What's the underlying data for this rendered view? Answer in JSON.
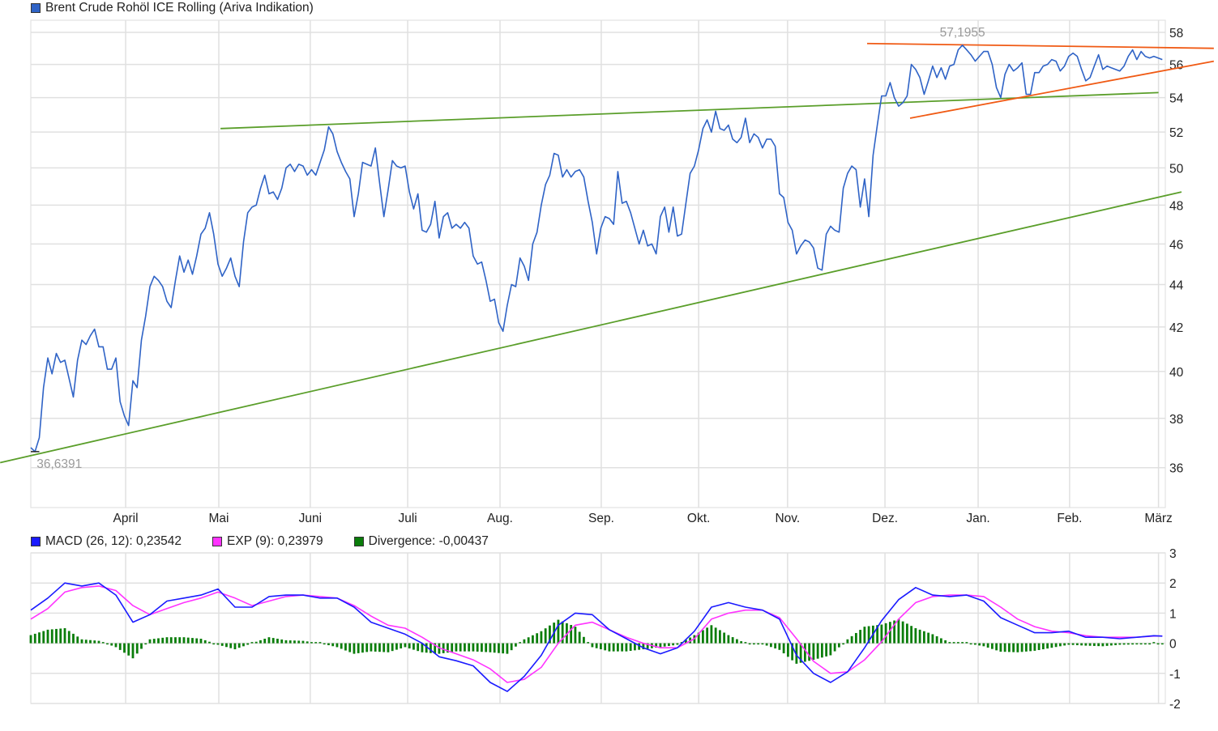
{
  "chart_data": [
    {
      "type": "line",
      "title": "Brent Crude Rohöl ICE Rolling (Ariva Indikation)",
      "y_scale": "log",
      "ylim": [
        34.46,
        58.78
      ],
      "y_ticks": [
        36,
        38,
        40,
        42,
        44,
        46,
        48,
        50,
        52,
        54,
        56,
        58
      ],
      "x_unit": "trading day index",
      "xlim": [
        0,
        266.7
      ],
      "x_ticks": [
        {
          "label": "April",
          "x": 22.3
        },
        {
          "label": "Mai",
          "x": 44.2
        },
        {
          "label": "Juni",
          "x": 65.7
        },
        {
          "label": "Juli",
          "x": 88.6
        },
        {
          "label": "Aug.",
          "x": 110.3
        },
        {
          "label": "Sep.",
          "x": 134.1
        },
        {
          "label": "Okt.",
          "x": 157
        },
        {
          "label": "Nov.",
          "x": 177.9
        },
        {
          "label": "Dez.",
          "x": 200.8
        },
        {
          "label": "Jan.",
          "x": 222.7
        },
        {
          "label": "Feb.",
          "x": 244.2
        },
        {
          "label": "März",
          "x": 265.1
        }
      ],
      "grid": true,
      "series": [
        {
          "name": "Brent Crude Rohöl ICE Rolling (Ariva Indikation)",
          "color": "#2f63c6",
          "values": [
            36.8,
            36.6391,
            37.2,
            39.3,
            40.6,
            39.9,
            40.8,
            40.4,
            40.5,
            39.7,
            38.9,
            40.5,
            41.4,
            41.2,
            41.6,
            41.9,
            41.1,
            41.1,
            40.1,
            40.1,
            40.6,
            38.7,
            38.1,
            37.7,
            39.6,
            39.3,
            41.4,
            42.5,
            43.9,
            44.4,
            44.2,
            43.9,
            43.2,
            42.9,
            44.2,
            45.4,
            44.6,
            45.2,
            44.5,
            45.4,
            46.5,
            46.8,
            47.6,
            46.5,
            45.0,
            44.4,
            44.8,
            45.3,
            44.4,
            43.9,
            46.1,
            47.6,
            47.9,
            48.0,
            48.9,
            49.6,
            48.6,
            48.7,
            48.3,
            48.9,
            50.0,
            50.2,
            49.8,
            50.2,
            50.1,
            49.6,
            49.9,
            49.6,
            50.3,
            51.0,
            52.3,
            51.9,
            50.9,
            50.3,
            49.8,
            49.4,
            47.4,
            48.6,
            50.3,
            50.2,
            50.1,
            51.1,
            49.2,
            47.4,
            48.8,
            50.4,
            50.1,
            50.0,
            50.1,
            48.7,
            47.8,
            48.6,
            46.7,
            46.6,
            47.0,
            48.2,
            46.3,
            47.4,
            47.6,
            46.8,
            47.0,
            46.8,
            47.1,
            46.8,
            45.4,
            45.0,
            45.1,
            44.2,
            43.2,
            43.3,
            42.2,
            41.8,
            43.0,
            44.0,
            43.9,
            45.3,
            44.9,
            44.2,
            46.0,
            46.6,
            48.0,
            49.1,
            49.6,
            50.8,
            50.7,
            49.5,
            49.9,
            49.5,
            49.8,
            49.9,
            49.5,
            48.2,
            47.1,
            45.5,
            46.8,
            47.4,
            47.3,
            47.0,
            49.8,
            48.1,
            48.2,
            47.6,
            46.8,
            46.0,
            46.7,
            45.9,
            46.0,
            45.5,
            47.4,
            47.9,
            46.6,
            47.9,
            46.4,
            46.5,
            48.1,
            49.7,
            50.1,
            51.0,
            52.2,
            52.7,
            52.0,
            53.2,
            52.2,
            52.1,
            52.4,
            51.6,
            51.4,
            51.7,
            52.8,
            51.4,
            51.9,
            51.7,
            51.1,
            51.6,
            51.6,
            51.2,
            48.6,
            48.4,
            47.1,
            46.7,
            45.5,
            45.9,
            46.2,
            46.1,
            45.8,
            44.8,
            44.7,
            46.5,
            46.9,
            46.7,
            46.6,
            48.9,
            49.7,
            50.1,
            49.9,
            47.9,
            49.4,
            47.4,
            50.7,
            52.4,
            54.1,
            54.1,
            54.9,
            54.0,
            53.5,
            53.7,
            54.1,
            56.0,
            55.7,
            55.2,
            54.2,
            55.0,
            55.9,
            55.2,
            55.8,
            55.1,
            55.9,
            56.0,
            56.9,
            57.1955,
            56.9,
            56.6,
            56.2,
            56.5,
            56.8,
            56.8,
            56.0,
            54.6,
            54.0,
            55.4,
            56.0,
            55.6,
            55.8,
            56.1,
            54.2,
            54.2,
            55.5,
            55.5,
            55.9,
            56.0,
            56.3,
            56.2,
            55.6,
            55.9,
            56.5,
            56.7,
            56.5,
            55.7,
            55.0,
            55.2,
            55.9,
            56.6,
            55.7,
            55.9,
            55.8,
            55.7,
            55.6,
            55.9,
            56.5,
            56.9,
            56.3,
            56.8,
            56.5,
            56.4,
            56.5,
            56.4,
            56.3
          ]
        }
      ],
      "trendlines": [
        {
          "name": "support-lower",
          "color": "#5a9e2a",
          "from": [
            -7.2,
            36.2
          ],
          "to": [
            270.5,
            48.7
          ]
        },
        {
          "name": "resistance-upper",
          "color": "#5a9e2a",
          "from": [
            44.6,
            52.2
          ],
          "to": [
            265.1,
            54.3
          ]
        },
        {
          "name": "triangle-top",
          "color": "#f05a14",
          "from": [
            196.6,
            57.3
          ],
          "to": [
            278.1,
            57.0
          ]
        },
        {
          "name": "triangle-bottom",
          "color": "#f05a14",
          "from": [
            206.7,
            52.8
          ],
          "to": [
            278.1,
            56.2
          ]
        }
      ],
      "annotations": [
        {
          "label": "57,1955",
          "x": 219,
          "value": 57.1955,
          "position": "above"
        },
        {
          "label": "36,6391",
          "x": 1,
          "value": 36.6391,
          "position": "below"
        }
      ]
    },
    {
      "type": "line",
      "title": "MACD",
      "ylim": [
        -2,
        3
      ],
      "y_ticks": [
        -2,
        -1,
        0,
        1,
        2,
        3
      ],
      "xlim": [
        0,
        266.7
      ],
      "x_step": 4,
      "x_last": 266,
      "legend": [
        {
          "label": "MACD (26, 12): 0,23542",
          "color": "#1a1aff"
        },
        {
          "label": "EXP (9): 0,23979",
          "color": "#ff33ff"
        },
        {
          "label": "Divergence: -0,00437",
          "color": "#0a7d0a"
        }
      ],
      "series": [
        {
          "name": "MACD (26, 12)",
          "color": "#1a1aff",
          "values": [
            1.1,
            1.5,
            2.0,
            1.9,
            2.0,
            1.6,
            0.7,
            0.95,
            1.4,
            1.5,
            1.6,
            1.8,
            1.2,
            1.2,
            1.55,
            1.6,
            1.6,
            1.5,
            1.5,
            1.2,
            0.7,
            0.5,
            0.3,
            0.0,
            -0.45,
            -0.58,
            -0.75,
            -1.3,
            -1.6,
            -1.1,
            -0.4,
            0.6,
            1.0,
            0.95,
            0.45,
            0.15,
            -0.15,
            -0.35,
            -0.15,
            0.4,
            1.2,
            1.35,
            1.2,
            1.1,
            0.8,
            -0.4,
            -1.0,
            -1.3,
            -0.95,
            -0.15,
            0.75,
            1.45,
            1.85,
            1.6,
            1.55,
            1.6,
            1.4,
            0.85,
            0.6,
            0.35,
            0.35,
            0.4,
            0.2,
            0.2,
            0.15,
            0.2,
            0.25,
            0.23542
          ]
        },
        {
          "name": "EXP (9)",
          "color": "#ff33ff",
          "values": [
            0.8,
            1.15,
            1.7,
            1.85,
            1.9,
            1.75,
            1.25,
            0.95,
            1.15,
            1.35,
            1.5,
            1.7,
            1.5,
            1.25,
            1.4,
            1.55,
            1.6,
            1.55,
            1.5,
            1.25,
            0.9,
            0.6,
            0.5,
            0.2,
            -0.15,
            -0.35,
            -0.55,
            -0.85,
            -1.3,
            -1.2,
            -0.8,
            0.0,
            0.6,
            0.7,
            0.45,
            0.2,
            0.0,
            -0.15,
            -0.15,
            0.15,
            0.8,
            1.0,
            1.1,
            1.1,
            0.85,
            0.15,
            -0.6,
            -1.0,
            -0.95,
            -0.55,
            0.05,
            0.8,
            1.35,
            1.55,
            1.6,
            1.6,
            1.55,
            1.2,
            0.8,
            0.55,
            0.4,
            0.35,
            0.25,
            0.2,
            0.2,
            0.2,
            0.24,
            0.23979
          ]
        },
        {
          "name": "Divergence",
          "color": "#0a7d0a",
          "type": "bar",
          "values": [
            0.27,
            0.45,
            0.5,
            0.13,
            0.08,
            -0.13,
            -0.5,
            0.13,
            0.2,
            0.2,
            0.15,
            -0.05,
            -0.2,
            0.0,
            0.2,
            0.1,
            0.08,
            0.0,
            -0.13,
            -0.35,
            -0.27,
            -0.3,
            -0.13,
            -0.3,
            -0.35,
            -0.27,
            -0.27,
            -0.3,
            -0.35,
            0.13,
            0.4,
            0.78,
            0.55,
            -0.13,
            -0.27,
            -0.27,
            -0.2,
            -0.13,
            -0.05,
            0.27,
            0.6,
            0.27,
            0.0,
            -0.03,
            -0.22,
            -0.68,
            -0.55,
            -0.4,
            0.13,
            0.55,
            0.62,
            0.8,
            0.5,
            0.3,
            0.03,
            0.0,
            -0.1,
            -0.28,
            -0.3,
            -0.25,
            -0.15,
            -0.05,
            -0.08,
            -0.1,
            -0.05,
            -0.04,
            0.0,
            -0.00437
          ]
        }
      ]
    }
  ]
}
